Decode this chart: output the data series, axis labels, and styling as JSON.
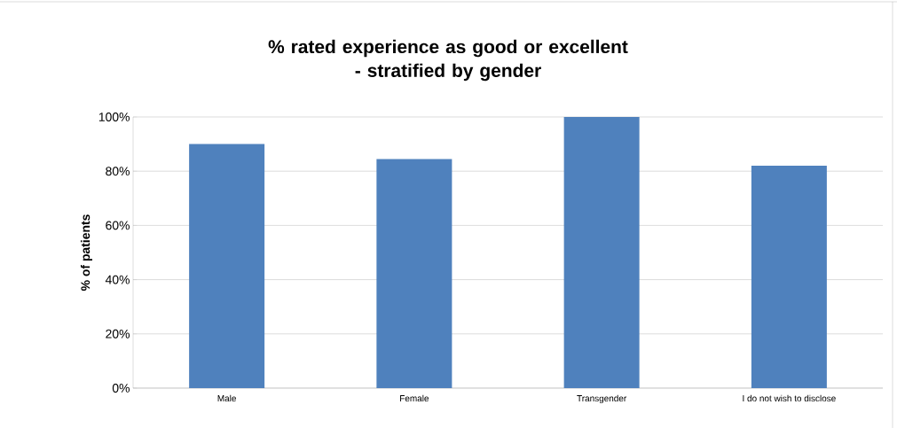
{
  "chart_data": {
    "type": "bar",
    "title": "% rated experience as good or excellent\n- stratified by gender",
    "ylabel": "% of patients",
    "categories": [
      "Male",
      "Female",
      "Transgender",
      "I do not wish to disclose"
    ],
    "values": [
      90,
      84.5,
      100,
      82
    ],
    "color": "#4f81bd",
    "ylim": [
      0,
      100
    ],
    "yticks": [
      {
        "value": 0,
        "label": "0%"
      },
      {
        "value": 20,
        "label": "20%"
      },
      {
        "value": 40,
        "label": "40%"
      },
      {
        "value": 60,
        "label": "60%"
      },
      {
        "value": 80,
        "label": "80%"
      },
      {
        "value": 100,
        "label": "100%"
      }
    ],
    "grid": "y"
  }
}
